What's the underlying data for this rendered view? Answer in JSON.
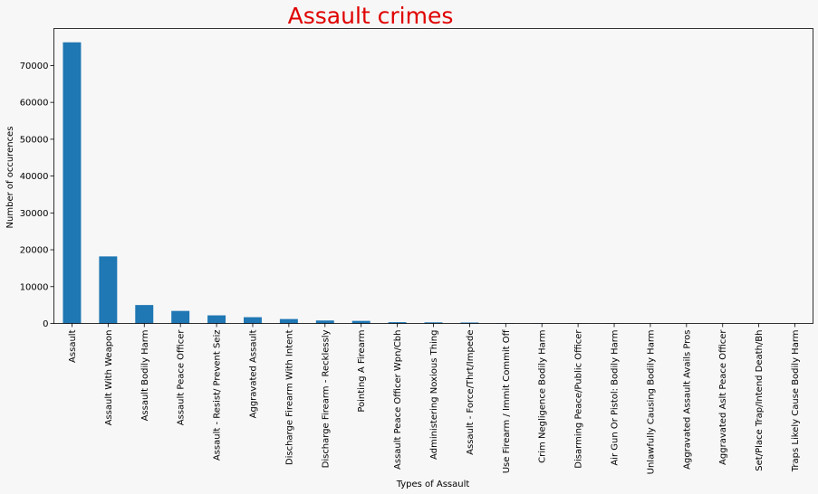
{
  "chart_data": {
    "type": "bar",
    "title": "Assault crimes",
    "title_color": "#e00000",
    "xlabel": "Types of Assault",
    "ylabel": "Number of occurences",
    "bar_color": "#1f77b4",
    "background": "#f7f7f7",
    "ylim": [
      0,
      80000
    ],
    "yticks": [
      0,
      10000,
      20000,
      30000,
      40000,
      50000,
      60000,
      70000
    ],
    "grid": false,
    "categories": [
      "Assault",
      "Assault With Weapon",
      "Assault Bodily Harm",
      "Assault Peace Officer",
      "Assault - Resist/ Prevent Seiz",
      "Aggravated Assault",
      "Discharge Firearm With Intent",
      "Discharge Firearm - Recklessly",
      "Pointing A Firearm",
      "Assault Peace Officer Wpn/Cbh",
      "Administering Noxious Thing",
      "Assault - Force/Thrt/Impede",
      "Use Firearm / Immit Commit Off",
      "Crim Negligence Bodily Harm",
      "Disarming Peace/Public Officer",
      "Air Gun Or Pistol: Bodily Harm",
      "Unlawfully Causing Bodily Harm",
      "Aggravated Assault Avails Pros",
      "Aggravated Aslt Peace Officer",
      "Set/Place Trap/Intend Death/Bh",
      "Traps Likely Cause Bodily Harm"
    ],
    "values": [
      76300,
      18200,
      5000,
      3400,
      2200,
      1700,
      1200,
      800,
      700,
      350,
      300,
      250,
      60,
      40,
      30,
      20,
      15,
      10,
      8,
      5,
      3
    ]
  }
}
